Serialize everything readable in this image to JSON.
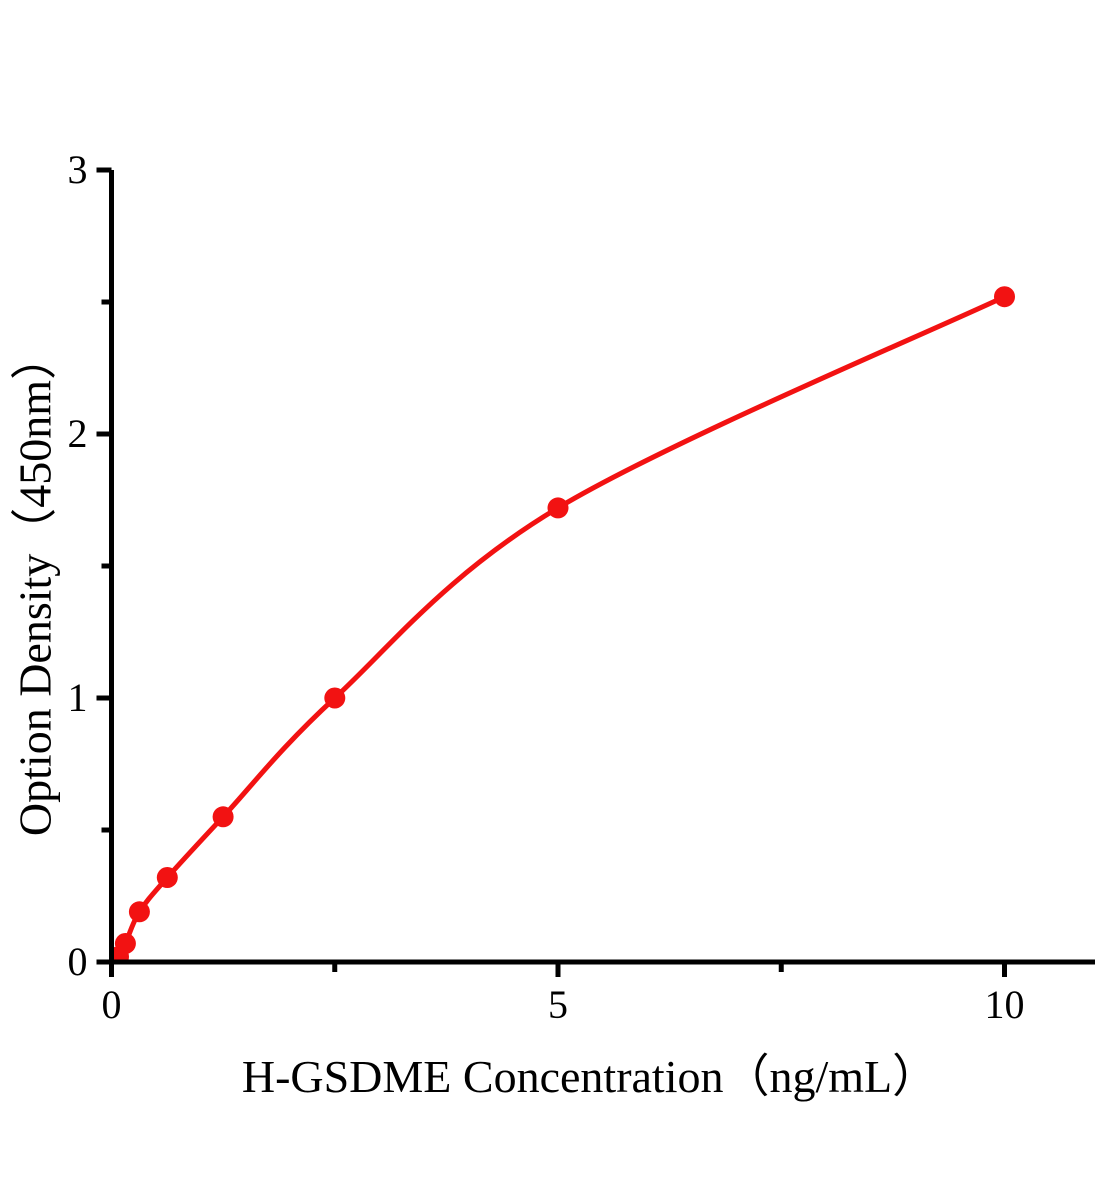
{
  "chart_data": {
    "type": "scatter",
    "title": "",
    "xlabel": "H-GSDME Concentration（ng/mL）",
    "ylabel": "Option Density（450nm）",
    "series": [
      {
        "x": [
          0.078,
          0.156,
          0.3125,
          0.625,
          1.25,
          2.5,
          5,
          10
        ],
        "y": [
          0.02,
          0.07,
          0.19,
          0.32,
          0.55,
          1.0,
          1.72,
          2.52
        ],
        "color": "#f21212",
        "marker": "circle",
        "line_style": "smooth"
      }
    ],
    "xlim": [
      0,
      11
    ],
    "ylim": [
      0,
      3
    ],
    "x_major_ticks": [
      0,
      5,
      10
    ],
    "x_minor_ticks": [
      2.5,
      7.5
    ],
    "y_major_ticks": [
      0,
      1,
      2,
      3
    ],
    "y_minor_ticks": [
      0.5,
      1.5,
      2.5
    ],
    "x_tick_labels": [
      "0",
      "5",
      "10"
    ],
    "y_tick_labels": [
      "0",
      "1",
      "2",
      "3"
    ],
    "axis_color": "#000000",
    "background_color": "#ffffff",
    "grid": false,
    "legend": null
  }
}
